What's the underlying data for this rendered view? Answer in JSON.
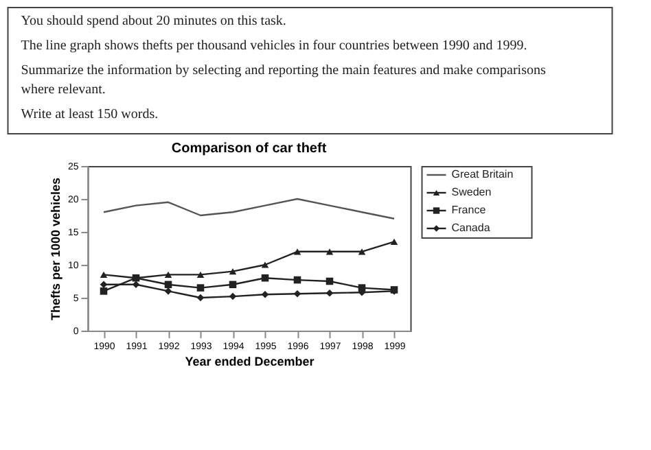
{
  "chart_data": {
    "type": "line",
    "title": "Comparison of car theft",
    "xlabel": "Year ended December",
    "ylabel": "Thefts per 1000 vehicles",
    "annotations": [
      "You should spend about 20 minutes on this task.",
      "The line graph shows thefts per thousand vehicles in four countries between 1990 and 1999.",
      "Summarize the information by selecting and reporting the main features and make comparisons where relevant.",
      "Write at least 150 words."
    ],
    "categories": [
      "1990",
      "1991",
      "1992",
      "1993",
      "1994",
      "1995",
      "1996",
      "1997",
      "1998",
      "1999"
    ],
    "series": [
      {
        "name": "Great Britain",
        "color": "#555555",
        "marker": "none",
        "values": [
          18,
          19,
          19.5,
          17.5,
          18,
          19,
          20,
          19,
          18,
          17
        ]
      },
      {
        "name": "Sweden",
        "color": "#222222",
        "marker": "triangle",
        "values": [
          8.5,
          8,
          8.5,
          8.5,
          9,
          10,
          12,
          12,
          12,
          13.5
        ]
      },
      {
        "name": "France",
        "color": "#222222",
        "marker": "square",
        "values": [
          6,
          8,
          7,
          6.5,
          7,
          8,
          7.7,
          7.5,
          6.5,
          6.2
        ]
      },
      {
        "name": "Canada",
        "color": "#222222",
        "marker": "diamond",
        "values": [
          7,
          7,
          6,
          5,
          5.2,
          5.5,
          5.6,
          5.7,
          5.8,
          6
        ]
      }
    ],
    "ylim": [
      0,
      25
    ],
    "yticks": [
      0,
      5,
      10,
      15,
      20,
      25
    ],
    "grid": false,
    "legend": "right"
  }
}
